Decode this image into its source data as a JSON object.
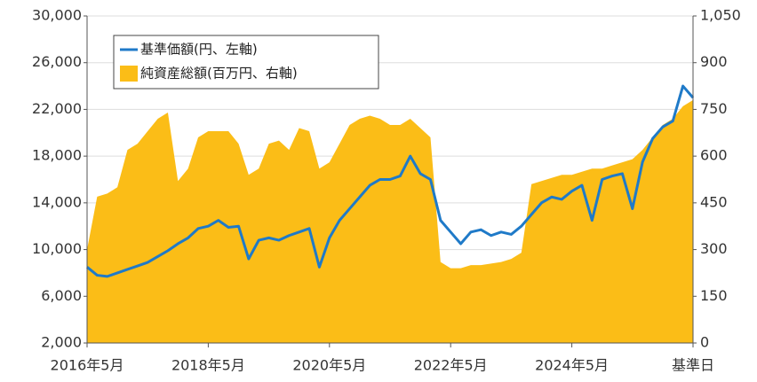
{
  "chart_data": {
    "type": "line",
    "categories": [
      "2016年5月",
      null,
      null,
      null,
      null,
      null,
      null,
      null,
      null,
      null,
      null,
      null,
      "2018年5月",
      null,
      null,
      null,
      null,
      null,
      null,
      null,
      null,
      null,
      null,
      null,
      "2020年5月",
      null,
      null,
      null,
      null,
      null,
      null,
      null,
      null,
      null,
      null,
      null,
      "2022年5月",
      null,
      null,
      null,
      null,
      null,
      null,
      null,
      null,
      null,
      null,
      null,
      "2024年5月",
      null,
      null,
      null,
      null,
      null,
      null,
      null,
      null,
      null,
      null,
      null,
      "基準日"
    ],
    "series": [
      {
        "name": "基準価額(円、左軸)",
        "type": "line",
        "color": "#1f7ac8",
        "axis": "y",
        "values": [
          8500,
          7800,
          7700,
          8000,
          8300,
          8600,
          8900,
          9400,
          9900,
          10500,
          11000,
          11800,
          12000,
          12500,
          11900,
          12000,
          9200,
          10800,
          11000,
          10800,
          11200,
          11500,
          11800,
          8500,
          11000,
          12500,
          13500,
          14500,
          15500,
          16000,
          16000,
          16300,
          18000,
          16500,
          16000,
          12500,
          11500,
          10500,
          11500,
          11700,
          11200,
          11500,
          11300,
          12000,
          13000,
          14000,
          14500,
          14300,
          15000,
          15500,
          12500,
          16000,
          16300,
          16500,
          13500,
          17500,
          19500,
          20500,
          21000,
          24000,
          23000
        ]
      },
      {
        "name": "純資産総額(百万円、右軸)",
        "type": "area",
        "color": "#fbbd17",
        "axis": "y2",
        "values": [
          300,
          470,
          480,
          500,
          620,
          640,
          680,
          720,
          740,
          520,
          560,
          660,
          680,
          680,
          680,
          640,
          540,
          560,
          640,
          650,
          620,
          690,
          680,
          560,
          580,
          640,
          700,
          720,
          730,
          720,
          700,
          700,
          720,
          690,
          660,
          260,
          240,
          240,
          250,
          250,
          255,
          260,
          270,
          290,
          510,
          520,
          530,
          540,
          540,
          550,
          560,
          560,
          570,
          580,
          590,
          620,
          660,
          700,
          720,
          760,
          780
        ]
      }
    ],
    "ylim": [
      2000,
      30000
    ],
    "yticks": [
      {
        "value": 2000,
        "label": "2,000"
      },
      {
        "value": 6000,
        "label": "6,000"
      },
      {
        "value": 10000,
        "label": "10,000"
      },
      {
        "value": 14000,
        "label": "14,000"
      },
      {
        "value": 18000,
        "label": "18,000"
      },
      {
        "value": 22000,
        "label": "22,000"
      },
      {
        "value": 26000,
        "label": "26,000"
      },
      {
        "value": 30000,
        "label": "30,000"
      }
    ],
    "y2lim": [
      0,
      1050
    ],
    "y2ticks": [
      0,
      150,
      300,
      450,
      600,
      750,
      900,
      {
        "value": 1050,
        "label": "1,050"
      }
    ],
    "grid": true,
    "legend": "upper left"
  }
}
